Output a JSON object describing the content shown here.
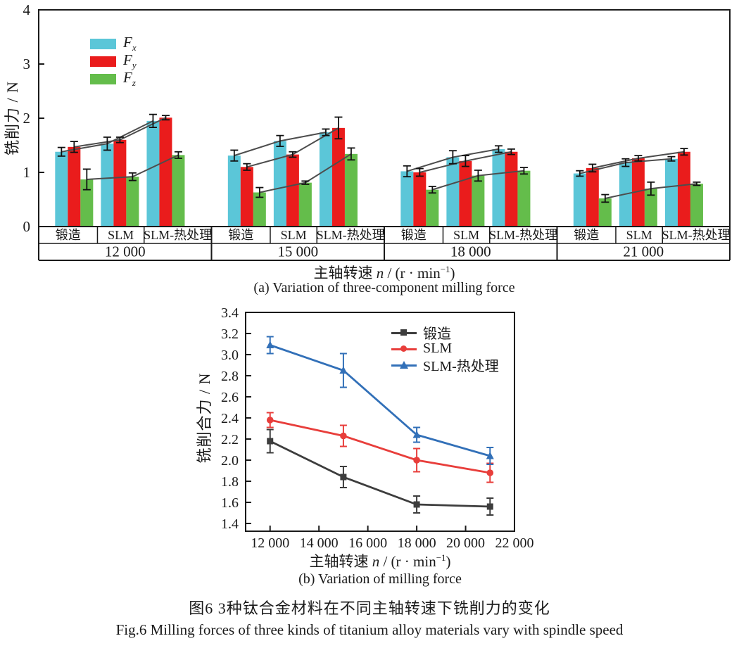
{
  "figure": {
    "title_zh": "图6  3种钛合金材料在不同主轴转速下铣削力的变化",
    "title_en": "Fig.6  Milling forces of three kinds of titanium alloy materials vary with spindle speed"
  },
  "chart_data": [
    {
      "type": "bar",
      "caption": "(a) Variation of three-component milling force",
      "ylabel": "铣削力 / N",
      "xlabel": "主轴转速 n / (r · min⁻¹)",
      "xlabel_parts": {
        "pre": "主轴转速 ",
        "var": "n",
        "mid": " / (r · min",
        "sup": "−1",
        "post": ")"
      },
      "ylim": [
        0,
        4
      ],
      "yticks": [
        {
          "v": 0,
          "label": "0"
        },
        {
          "v": 1,
          "label": "1"
        },
        {
          "v": 2,
          "label": "2"
        },
        {
          "v": 3,
          "label": "3"
        },
        {
          "v": 4,
          "label": "4"
        }
      ],
      "speed_groups": [
        "12 000",
        "15 000",
        "18 000",
        "21 000"
      ],
      "materials": [
        "锻造",
        "SLM",
        "SLM-热处理"
      ],
      "connector_color": "#4D4D4D",
      "errorbar_color": "#111111",
      "series": [
        {
          "name": "Fx",
          "sym": "F",
          "sub": "x",
          "color": "#5BC6D8",
          "values": [
            [
              1.38,
              1.53,
              1.95
            ],
            [
              1.31,
              1.58,
              1.74
            ],
            [
              1.02,
              1.28,
              1.43
            ],
            [
              0.98,
              1.18,
              1.25
            ]
          ],
          "errors": [
            [
              0.08,
              0.12,
              0.12
            ],
            [
              0.1,
              0.1,
              0.06
            ],
            [
              0.1,
              0.12,
              0.06
            ],
            [
              0.05,
              0.07,
              0.04
            ]
          ]
        },
        {
          "name": "Fy",
          "sym": "F",
          "sub": "y",
          "color": "#EA1C1C",
          "values": [
            [
              1.47,
              1.6,
              2.01
            ],
            [
              1.1,
              1.33,
              1.82
            ],
            [
              1.0,
              1.21,
              1.38
            ],
            [
              1.08,
              1.26,
              1.38
            ]
          ],
          "errors": [
            [
              0.1,
              0.05,
              0.04
            ],
            [
              0.06,
              0.05,
              0.2
            ],
            [
              0.07,
              0.1,
              0.05
            ],
            [
              0.07,
              0.05,
              0.06
            ]
          ]
        },
        {
          "name": "Fz",
          "sym": "F",
          "sub": "z",
          "color": "#64BD4B",
          "values": [
            [
              0.87,
              0.92,
              1.32
            ],
            [
              0.63,
              0.81,
              1.34
            ],
            [
              0.68,
              0.94,
              1.03
            ],
            [
              0.52,
              0.7,
              0.79
            ]
          ],
          "errors": [
            [
              0.19,
              0.07,
              0.06
            ],
            [
              0.09,
              0.03,
              0.11
            ],
            [
              0.06,
              0.1,
              0.06
            ],
            [
              0.07,
              0.12,
              0.03
            ]
          ]
        }
      ]
    },
    {
      "type": "line",
      "caption": "(b) Variation of milling force",
      "ylabel": "铣削合力 / N",
      "xlabel": "主轴转速 n / (r · min⁻¹)",
      "xlabel_parts": {
        "pre": "主轴转速 ",
        "var": "n",
        "mid": " / (r · min",
        "sup": "−1",
        "post": ")"
      },
      "x": [
        12000,
        15000,
        18000,
        21000
      ],
      "xlim": [
        11000,
        22000
      ],
      "ylim": [
        1.33,
        3.4
      ],
      "xticks": [
        {
          "v": 12000,
          "label": "12 000"
        },
        {
          "v": 14000,
          "label": "14 000"
        },
        {
          "v": 16000,
          "label": "16 000"
        },
        {
          "v": 18000,
          "label": "18 000"
        },
        {
          "v": 20000,
          "label": "20 000"
        },
        {
          "v": 22000,
          "label": "22 000"
        }
      ],
      "yticks": [
        {
          "v": 1.4,
          "label": "1.4"
        },
        {
          "v": 1.6,
          "label": "1.6"
        },
        {
          "v": 1.8,
          "label": "1.8"
        },
        {
          "v": 2.0,
          "label": "2.0"
        },
        {
          "v": 2.2,
          "label": "2.2"
        },
        {
          "v": 2.4,
          "label": "2.4"
        },
        {
          "v": 2.6,
          "label": "2.6"
        },
        {
          "v": 2.8,
          "label": "2.8"
        },
        {
          "v": 3.0,
          "label": "3.0"
        },
        {
          "v": 3.2,
          "label": "3.2"
        },
        {
          "v": 3.4,
          "label": "3.4"
        }
      ],
      "series": [
        {
          "name": "锻造",
          "color": "#3D3D3D",
          "marker": "square",
          "values": [
            2.18,
            1.84,
            1.58,
            1.56
          ],
          "errors": [
            0.11,
            0.1,
            0.08,
            0.08
          ]
        },
        {
          "name": "SLM",
          "color": "#E83E3B",
          "marker": "circle",
          "values": [
            2.38,
            2.23,
            2.0,
            1.88
          ],
          "errors": [
            0.07,
            0.1,
            0.11,
            0.09
          ]
        },
        {
          "name": "SLM-热处理",
          "color": "#3270B8",
          "marker": "triangle",
          "values": [
            3.09,
            2.85,
            2.24,
            2.04
          ],
          "errors": [
            0.08,
            0.16,
            0.07,
            0.08
          ]
        }
      ]
    }
  ]
}
